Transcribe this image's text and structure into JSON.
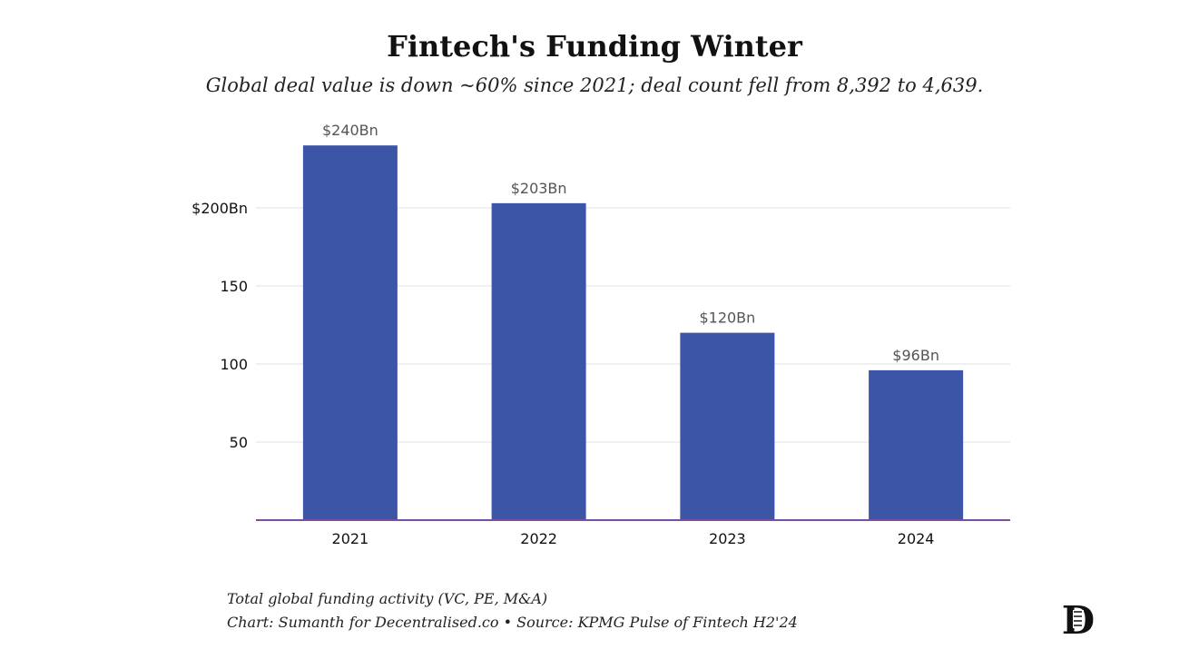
{
  "title": "Fintech's Funding Winter",
  "subtitle": "Global deal value is down ~60% since 2021; deal count fell from 8,392 to 4,639.",
  "footer": {
    "line1": "Total global funding activity (VC, PE, M&A)",
    "line2": "Chart: Sumanth for Decentralised.co • Source: KPMG Pulse of Fintech H2'24"
  },
  "logo": "D",
  "chart_data": {
    "type": "bar",
    "categories": [
      "2021",
      "2022",
      "2023",
      "2024"
    ],
    "values": [
      240,
      203,
      120,
      96
    ],
    "data_labels": [
      "$240Bn",
      "$203Bn",
      "$120Bn",
      "$96Bn"
    ],
    "yticks": [
      50,
      100,
      150,
      200
    ],
    "ytick_labels": [
      "50",
      "100",
      "150",
      "$200Bn"
    ],
    "ylim": [
      0,
      240
    ],
    "grid": true,
    "bar_color": "#3d55a6",
    "axis_color": "#7b4fa0"
  }
}
